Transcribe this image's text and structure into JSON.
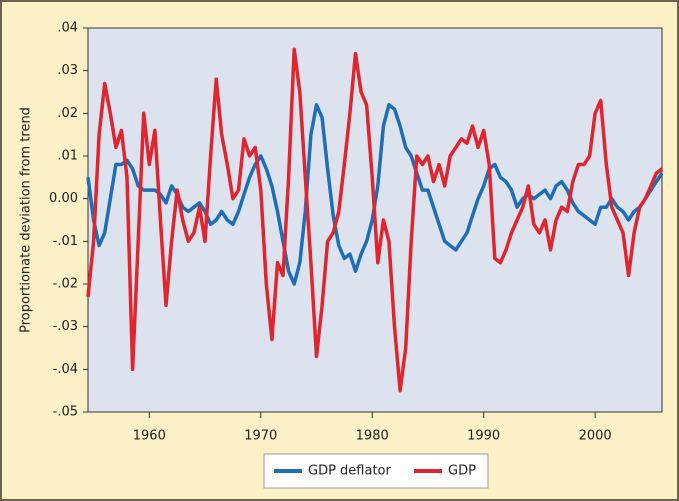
{
  "chart_data": {
    "type": "line",
    "y_label": "Proportionate deviation from trend",
    "x": [
      1954.5,
      1955,
      1955.5,
      1956,
      1956.5,
      1957,
      1957.5,
      1958,
      1958.5,
      1959,
      1959.5,
      1960,
      1960.5,
      1961,
      1961.5,
      1962,
      1962.5,
      1963,
      1963.5,
      1964,
      1964.5,
      1965,
      1965.5,
      1966,
      1966.5,
      1967,
      1967.5,
      1968,
      1968.5,
      1969,
      1969.5,
      1970,
      1970.5,
      1971,
      1971.5,
      1972,
      1972.5,
      1973,
      1973.5,
      1974,
      1974.5,
      1975,
      1975.5,
      1976,
      1976.5,
      1977,
      1977.5,
      1978,
      1978.5,
      1979,
      1979.5,
      1980,
      1980.5,
      1981,
      1981.5,
      1982,
      1982.5,
      1983,
      1983.5,
      1984,
      1984.5,
      1985,
      1985.5,
      1986,
      1986.5,
      1987,
      1987.5,
      1988,
      1988.5,
      1989,
      1989.5,
      1990,
      1990.5,
      1991,
      1991.5,
      1992,
      1992.5,
      1993,
      1993.5,
      1994,
      1994.5,
      1995,
      1995.5,
      1996,
      1996.5,
      1997,
      1997.5,
      1998,
      1998.5,
      1999,
      1999.5,
      2000,
      2000.5,
      2001,
      2001.5,
      2002,
      2002.5,
      2003,
      2003.5,
      2004,
      2004.5,
      2005,
      2005.5,
      2006
    ],
    "series": [
      {
        "name": "GDP deflator",
        "color": "#1f6db5",
        "values": [
          0.005,
          -0.005,
          -0.011,
          -0.008,
          0.0,
          0.008,
          0.008,
          0.009,
          0.007,
          0.003,
          0.002,
          0.002,
          0.002,
          0.001,
          -0.001,
          0.003,
          0.001,
          -0.002,
          -0.003,
          -0.002,
          -0.001,
          -0.003,
          -0.006,
          -0.005,
          -0.003,
          -0.005,
          -0.006,
          -0.003,
          0.001,
          0.005,
          0.008,
          0.01,
          0.007,
          0.003,
          -0.003,
          -0.01,
          -0.017,
          -0.02,
          -0.015,
          -0.003,
          0.015,
          0.022,
          0.019,
          0.007,
          -0.004,
          -0.011,
          -0.014,
          -0.013,
          -0.017,
          -0.013,
          -0.01,
          -0.005,
          0.003,
          0.017,
          0.022,
          0.021,
          0.017,
          0.012,
          0.01,
          0.006,
          0.002,
          0.002,
          -0.002,
          -0.006,
          -0.01,
          -0.011,
          -0.012,
          -0.01,
          -0.008,
          -0.004,
          0.0,
          0.003,
          0.007,
          0.008,
          0.005,
          0.004,
          0.002,
          -0.002,
          0.0,
          0.001,
          0.0,
          0.001,
          0.002,
          0.0,
          0.003,
          0.004,
          0.002,
          -0.001,
          -0.003,
          -0.004,
          -0.005,
          -0.006,
          -0.002,
          -0.002,
          0.0,
          -0.002,
          -0.003,
          -0.005,
          -0.003,
          -0.002,
          0.0,
          0.002,
          0.004,
          0.006
        ]
      },
      {
        "name": "GDP",
        "color": "#e0252f",
        "values": [
          -0.023,
          -0.01,
          0.015,
          0.027,
          0.02,
          0.012,
          0.016,
          0.005,
          -0.04,
          -0.01,
          0.02,
          0.008,
          0.016,
          -0.005,
          -0.025,
          -0.01,
          0.002,
          -0.005,
          -0.01,
          -0.008,
          -0.002,
          -0.01,
          0.01,
          0.028,
          0.015,
          0.008,
          0.0,
          0.002,
          0.014,
          0.01,
          0.012,
          0.002,
          -0.02,
          -0.033,
          -0.015,
          -0.018,
          0.005,
          0.035,
          0.025,
          0.005,
          -0.015,
          -0.037,
          -0.025,
          -0.01,
          -0.008,
          -0.003,
          0.008,
          0.02,
          0.034,
          0.025,
          0.022,
          0.005,
          -0.015,
          -0.005,
          -0.01,
          -0.03,
          -0.045,
          -0.035,
          -0.01,
          0.01,
          0.008,
          0.01,
          0.004,
          0.008,
          0.003,
          0.01,
          0.012,
          0.014,
          0.013,
          0.017,
          0.012,
          0.016,
          0.008,
          -0.014,
          -0.015,
          -0.012,
          -0.008,
          -0.005,
          -0.002,
          0.003,
          -0.006,
          -0.008,
          -0.005,
          -0.012,
          -0.005,
          -0.002,
          -0.003,
          0.004,
          0.008,
          0.008,
          0.01,
          0.02,
          0.023,
          0.008,
          -0.002,
          -0.005,
          -0.008,
          -0.018,
          -0.008,
          -0.002,
          0.0,
          0.003,
          0.006,
          0.007
        ]
      }
    ],
    "xlim": [
      1954.5,
      2006
    ],
    "xticks": [
      1960,
      1970,
      1980,
      1990,
      2000
    ],
    "ylim": [
      -0.05,
      0.04
    ],
    "yticks": [
      {
        "value": 0.04,
        "label": ".04"
      },
      {
        "value": 0.03,
        "label": ".03"
      },
      {
        "value": 0.02,
        "label": ".02"
      },
      {
        "value": 0.01,
        "label": ".01"
      },
      {
        "value": 0,
        "label": "0.00"
      },
      {
        "value": -0.01,
        "label": "-.01"
      },
      {
        "value": -0.02,
        "label": "-.02"
      },
      {
        "value": -0.03,
        "label": "-.03"
      },
      {
        "value": -0.04,
        "label": "-.04"
      },
      {
        "value": -0.05,
        "label": "-.05"
      }
    ],
    "grid": false,
    "legend": "bottom"
  }
}
